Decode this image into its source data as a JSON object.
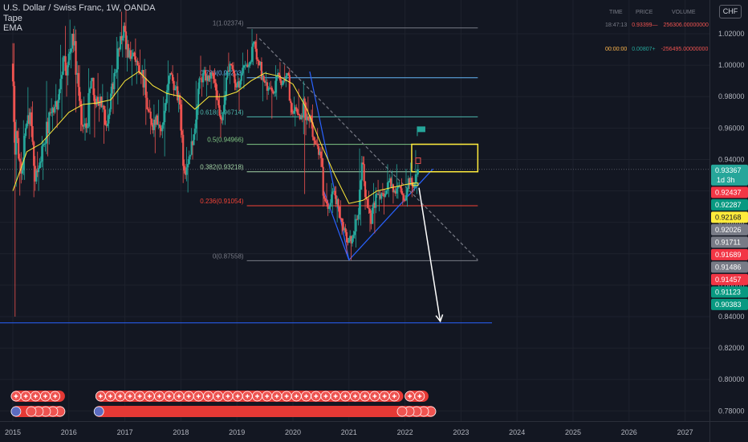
{
  "header": {
    "title": "U.S. Dollar / Swiss Franc, 1W, OANDA",
    "indicators": [
      "Tape",
      "EMA"
    ]
  },
  "currency_button": "CHF",
  "tape": {
    "columns": [
      "TIME",
      "PRICE",
      "VOLUME"
    ],
    "rows": [
      {
        "time": "18:47:13",
        "price": "0.93399",
        "dir": "—",
        "volume": "256306.00000000",
        "price_color": "#ef5350",
        "volume_color": "#ef5350"
      },
      {
        "time": "00:00:00",
        "price": "0.00807",
        "dir": "+",
        "volume": "-256495.00000000",
        "price_color": "#26a69a",
        "volume_color": "#ef5350"
      }
    ]
  },
  "chart_data": {
    "type": "candlestick",
    "x_axis": {
      "labels": [
        "2015",
        "2016",
        "2017",
        "2018",
        "2019",
        "2020",
        "2021",
        "2022",
        "2023",
        "2024",
        "2025",
        "2026",
        "2027"
      ]
    },
    "y_axis": {
      "labels": [
        "1.02000",
        "1.00000",
        "0.98000",
        "0.96000",
        "0.94000",
        "0.92000",
        "0.90000",
        "0.88000",
        "0.86000",
        "0.84000",
        "0.82000",
        "0.80000",
        "0.78000"
      ],
      "range": [
        0.7735,
        1.0415
      ]
    },
    "candles": [
      {
        "t": 2015.0,
        "o": 1.001,
        "h": 1.014,
        "l": 0.84,
        "c": 0.958
      },
      {
        "t": 2015.08,
        "o": 0.958,
        "h": 0.96,
        "l": 0.917,
        "c": 0.931
      },
      {
        "t": 2015.17,
        "o": 0.931,
        "h": 0.965,
        "l": 0.927,
        "c": 0.96
      },
      {
        "t": 2015.25,
        "o": 0.96,
        "h": 0.986,
        "l": 0.953,
        "c": 0.97
      },
      {
        "t": 2015.33,
        "o": 0.97,
        "h": 0.977,
        "l": 0.916,
        "c": 0.926
      },
      {
        "t": 2015.42,
        "o": 0.926,
        "h": 0.945,
        "l": 0.92,
        "c": 0.938
      },
      {
        "t": 2015.5,
        "o": 0.938,
        "h": 0.955,
        "l": 0.927,
        "c": 0.95
      },
      {
        "t": 2015.58,
        "o": 0.95,
        "h": 0.99,
        "l": 0.942,
        "c": 0.97
      },
      {
        "t": 2015.67,
        "o": 0.97,
        "h": 0.979,
        "l": 0.959,
        "c": 0.97
      },
      {
        "t": 2015.75,
        "o": 0.97,
        "h": 0.988,
        "l": 0.96,
        "c": 0.978
      },
      {
        "t": 2015.83,
        "o": 0.978,
        "h": 1.013,
        "l": 0.966,
        "c": 1.005
      },
      {
        "t": 2015.92,
        "o": 1.005,
        "h": 1.025,
        "l": 0.98,
        "c": 1.0
      },
      {
        "t": 2016.0,
        "o": 1.0,
        "h": 1.029,
        "l": 0.998,
        "c": 1.02
      },
      {
        "t": 2016.08,
        "o": 1.02,
        "h": 1.025,
        "l": 0.97,
        "c": 0.995
      },
      {
        "t": 2016.17,
        "o": 0.995,
        "h": 1.0,
        "l": 0.958,
        "c": 0.962
      },
      {
        "t": 2016.25,
        "o": 0.962,
        "h": 0.98,
        "l": 0.952,
        "c": 0.96
      },
      {
        "t": 2016.33,
        "o": 0.96,
        "h": 0.998,
        "l": 0.956,
        "c": 0.99
      },
      {
        "t": 2016.42,
        "o": 0.99,
        "h": 0.992,
        "l": 0.954,
        "c": 0.975
      },
      {
        "t": 2016.5,
        "o": 0.975,
        "h": 0.995,
        "l": 0.964,
        "c": 0.98
      },
      {
        "t": 2016.58,
        "o": 0.98,
        "h": 0.988,
        "l": 0.95,
        "c": 0.962
      },
      {
        "t": 2016.67,
        "o": 0.962,
        "h": 0.983,
        "l": 0.958,
        "c": 0.972
      },
      {
        "t": 2016.75,
        "o": 0.972,
        "h": 1.0,
        "l": 0.969,
        "c": 0.995
      },
      {
        "t": 2016.83,
        "o": 0.995,
        "h": 1.018,
        "l": 0.975,
        "c": 1.01
      },
      {
        "t": 2016.92,
        "o": 1.01,
        "h": 1.034,
        "l": 1.005,
        "c": 1.025
      },
      {
        "t": 2017.0,
        "o": 1.025,
        "h": 1.035,
        "l": 0.996,
        "c": 1.005
      },
      {
        "t": 2017.08,
        "o": 1.005,
        "h": 1.015,
        "l": 0.987,
        "c": 1.008
      },
      {
        "t": 2017.17,
        "o": 1.008,
        "h": 1.017,
        "l": 0.988,
        "c": 1.0
      },
      {
        "t": 2017.25,
        "o": 1.0,
        "h": 1.01,
        "l": 0.988,
        "c": 0.997
      },
      {
        "t": 2017.33,
        "o": 0.997,
        "h": 1.004,
        "l": 0.962,
        "c": 0.972
      },
      {
        "t": 2017.42,
        "o": 0.972,
        "h": 0.978,
        "l": 0.956,
        "c": 0.962
      },
      {
        "t": 2017.5,
        "o": 0.962,
        "h": 0.975,
        "l": 0.944,
        "c": 0.968
      },
      {
        "t": 2017.58,
        "o": 0.968,
        "h": 0.978,
        "l": 0.954,
        "c": 0.958
      },
      {
        "t": 2017.67,
        "o": 0.958,
        "h": 0.98,
        "l": 0.942,
        "c": 0.976
      },
      {
        "t": 2017.75,
        "o": 0.976,
        "h": 1.003,
        "l": 0.97,
        "c": 0.995
      },
      {
        "t": 2017.83,
        "o": 0.995,
        "h": 1.0,
        "l": 0.98,
        "c": 0.985
      },
      {
        "t": 2017.92,
        "o": 0.985,
        "h": 0.995,
        "l": 0.97,
        "c": 0.975
      },
      {
        "t": 2018.0,
        "o": 0.975,
        "h": 0.978,
        "l": 0.925,
        "c": 0.933
      },
      {
        "t": 2018.08,
        "o": 0.933,
        "h": 0.948,
        "l": 0.919,
        "c": 0.942
      },
      {
        "t": 2018.17,
        "o": 0.942,
        "h": 0.96,
        "l": 0.94,
        "c": 0.956
      },
      {
        "t": 2018.25,
        "o": 0.956,
        "h": 0.99,
        "l": 0.952,
        "c": 0.985
      },
      {
        "t": 2018.33,
        "o": 0.985,
        "h": 1.006,
        "l": 0.98,
        "c": 0.995
      },
      {
        "t": 2018.42,
        "o": 0.995,
        "h": 0.999,
        "l": 0.98,
        "c": 0.99
      },
      {
        "t": 2018.5,
        "o": 0.99,
        "h": 1.0,
        "l": 0.985,
        "c": 0.995
      },
      {
        "t": 2018.58,
        "o": 0.995,
        "h": 0.998,
        "l": 0.972,
        "c": 0.978
      },
      {
        "t": 2018.67,
        "o": 0.978,
        "h": 0.982,
        "l": 0.954,
        "c": 0.965
      },
      {
        "t": 2018.75,
        "o": 0.965,
        "h": 0.995,
        "l": 0.962,
        "c": 0.992
      },
      {
        "t": 2018.83,
        "o": 0.992,
        "h": 1.008,
        "l": 0.988,
        "c": 1.0
      },
      {
        "t": 2018.92,
        "o": 1.0,
        "h": 1.002,
        "l": 0.984,
        "c": 0.986
      },
      {
        "t": 2019.0,
        "o": 0.986,
        "h": 0.995,
        "l": 0.971,
        "c": 0.99
      },
      {
        "t": 2019.08,
        "o": 0.99,
        "h": 1.008,
        "l": 0.985,
        "c": 1.0
      },
      {
        "t": 2019.17,
        "o": 1.0,
        "h": 1.01,
        "l": 0.995,
        "c": 1.002
      },
      {
        "t": 2019.25,
        "o": 1.002,
        "h": 1.023,
        "l": 1.0,
        "c": 1.015
      },
      {
        "t": 2019.33,
        "o": 1.015,
        "h": 1.02,
        "l": 0.998,
        "c": 1.0
      },
      {
        "t": 2019.42,
        "o": 1.0,
        "h": 1.005,
        "l": 0.977,
        "c": 0.99
      },
      {
        "t": 2019.5,
        "o": 0.99,
        "h": 0.996,
        "l": 0.978,
        "c": 0.985
      },
      {
        "t": 2019.58,
        "o": 0.985,
        "h": 0.99,
        "l": 0.966,
        "c": 0.982
      },
      {
        "t": 2019.67,
        "o": 0.982,
        "h": 1.0,
        "l": 0.978,
        "c": 0.995
      },
      {
        "t": 2019.75,
        "o": 0.995,
        "h": 1.002,
        "l": 0.985,
        "c": 0.988
      },
      {
        "t": 2019.83,
        "o": 0.988,
        "h": 1.0,
        "l": 0.986,
        "c": 0.995
      },
      {
        "t": 2019.92,
        "o": 0.995,
        "h": 0.998,
        "l": 0.968,
        "c": 0.97
      },
      {
        "t": 2020.0,
        "o": 0.97,
        "h": 0.98,
        "l": 0.961,
        "c": 0.972
      },
      {
        "t": 2020.08,
        "o": 0.972,
        "h": 0.985,
        "l": 0.965,
        "c": 0.968
      },
      {
        "t": 2020.17,
        "o": 0.968,
        "h": 0.99,
        "l": 0.918,
        "c": 0.965
      },
      {
        "t": 2020.25,
        "o": 0.965,
        "h": 0.98,
        "l": 0.96,
        "c": 0.968
      },
      {
        "t": 2020.33,
        "o": 0.968,
        "h": 0.975,
        "l": 0.948,
        "c": 0.95
      },
      {
        "t": 2020.42,
        "o": 0.95,
        "h": 0.96,
        "l": 0.94,
        "c": 0.945
      },
      {
        "t": 2020.5,
        "o": 0.945,
        "h": 0.95,
        "l": 0.91,
        "c": 0.915
      },
      {
        "t": 2020.58,
        "o": 0.915,
        "h": 0.925,
        "l": 0.904,
        "c": 0.91
      },
      {
        "t": 2020.67,
        "o": 0.91,
        "h": 0.925,
        "l": 0.906,
        "c": 0.92
      },
      {
        "t": 2020.75,
        "o": 0.92,
        "h": 0.923,
        "l": 0.9,
        "c": 0.91
      },
      {
        "t": 2020.83,
        "o": 0.91,
        "h": 0.914,
        "l": 0.892,
        "c": 0.895
      },
      {
        "t": 2020.92,
        "o": 0.895,
        "h": 0.899,
        "l": 0.88,
        "c": 0.887
      },
      {
        "t": 2021.0,
        "o": 0.887,
        "h": 0.895,
        "l": 0.876,
        "c": 0.89
      },
      {
        "t": 2021.08,
        "o": 0.89,
        "h": 0.905,
        "l": 0.884,
        "c": 0.902
      },
      {
        "t": 2021.17,
        "o": 0.902,
        "h": 0.947,
        "l": 0.898,
        "c": 0.938
      },
      {
        "t": 2021.25,
        "o": 0.938,
        "h": 0.942,
        "l": 0.908,
        "c": 0.915
      },
      {
        "t": 2021.33,
        "o": 0.915,
        "h": 0.92,
        "l": 0.894,
        "c": 0.899
      },
      {
        "t": 2021.42,
        "o": 0.899,
        "h": 0.925,
        "l": 0.893,
        "c": 0.918
      },
      {
        "t": 2021.5,
        "o": 0.918,
        "h": 0.927,
        "l": 0.907,
        "c": 0.915
      },
      {
        "t": 2021.58,
        "o": 0.915,
        "h": 0.925,
        "l": 0.905,
        "c": 0.918
      },
      {
        "t": 2021.67,
        "o": 0.918,
        "h": 0.937,
        "l": 0.916,
        "c": 0.928
      },
      {
        "t": 2021.75,
        "o": 0.928,
        "h": 0.933,
        "l": 0.912,
        "c": 0.92
      },
      {
        "t": 2021.83,
        "o": 0.92,
        "h": 0.937,
        "l": 0.915,
        "c": 0.923
      },
      {
        "t": 2021.92,
        "o": 0.923,
        "h": 0.928,
        "l": 0.911,
        "c": 0.914
      },
      {
        "t": 2022.0,
        "o": 0.914,
        "h": 0.934,
        "l": 0.91,
        "c": 0.928
      },
      {
        "t": 2022.08,
        "o": 0.928,
        "h": 0.938,
        "l": 0.916,
        "c": 0.922
      },
      {
        "t": 2022.17,
        "o": 0.922,
        "h": 0.946,
        "l": 0.918,
        "c": 0.9337
      }
    ],
    "ema": [
      [
        2015.0,
        0.92
      ],
      [
        2015.25,
        0.945
      ],
      [
        2015.5,
        0.95
      ],
      [
        2015.75,
        0.96
      ],
      [
        2016.0,
        0.97
      ],
      [
        2016.25,
        0.975
      ],
      [
        2016.5,
        0.976
      ],
      [
        2016.75,
        0.978
      ],
      [
        2017.0,
        0.99
      ],
      [
        2017.25,
        0.996
      ],
      [
        2017.5,
        0.987
      ],
      [
        2017.75,
        0.982
      ],
      [
        2018.0,
        0.98
      ],
      [
        2018.25,
        0.972
      ],
      [
        2018.5,
        0.98
      ],
      [
        2018.75,
        0.98
      ],
      [
        2019.0,
        0.983
      ],
      [
        2019.25,
        0.99
      ],
      [
        2019.5,
        0.995
      ],
      [
        2019.75,
        0.993
      ],
      [
        2020.0,
        0.988
      ],
      [
        2020.25,
        0.972
      ],
      [
        2020.5,
        0.95
      ],
      [
        2020.75,
        0.93
      ],
      [
        2021.0,
        0.912
      ],
      [
        2021.25,
        0.914
      ],
      [
        2021.5,
        0.92
      ],
      [
        2021.75,
        0.922
      ],
      [
        2022.0,
        0.924
      ],
      [
        2022.17,
        0.925
      ]
    ],
    "fibonacci": {
      "levels": [
        {
          "label": "1(1.02374)",
          "value": 1.02374,
          "color": "#787b86"
        },
        {
          "label": "0.786(0.99203)",
          "value": 0.99203,
          "color": "#64b5f6"
        },
        {
          "label": "0.618(0.96714)",
          "value": 0.96714,
          "color": "#4db6ac"
        },
        {
          "label": "0.5(0.94966)",
          "value": 0.94966,
          "color": "#81c784"
        },
        {
          "label": "0.382(0.93218)",
          "value": 0.93218,
          "color": "#a5d6a7"
        },
        {
          "label": "0.236(0.91054)",
          "value": 0.91054,
          "color": "#f44336"
        },
        {
          "label": "0(0.87558)",
          "value": 0.87558,
          "color": "#787b86"
        }
      ],
      "t_start": 2019.12,
      "t_end": 2023.3
    },
    "support_line": {
      "value": 0.836,
      "color": "#2962ff"
    },
    "yellow_box": {
      "t1": 2022.12,
      "t2": 2023.3,
      "y_top": 0.9497,
      "y_bottom": 0.9322,
      "color": "#ffeb3b"
    },
    "target_arrow": {
      "from": [
        2022.25,
        0.922
      ],
      "to": [
        2022.63,
        0.837
      ],
      "color": "#ffffff"
    },
    "flag": {
      "t": 2022.22,
      "y": 0.96,
      "color": "#26a69a"
    },
    "trendlines": [
      {
        "from": [
          2020.3,
          0.996
        ],
        "to": [
          2021.0,
          0.876
        ],
        "color": "#2962ff"
      },
      {
        "from": [
          2021.0,
          0.876
        ],
        "to": [
          2022.5,
          0.934
        ],
        "color": "#2962ff"
      },
      {
        "from": [
          2020.55,
          0.92
        ],
        "to": [
          2021.0,
          0.876
        ],
        "color": "#2962ff"
      },
      {
        "from": [
          2019.4,
          1.017
        ],
        "to": [
          2023.3,
          0.876
        ],
        "color": "#787b86",
        "dashed": true
      }
    ],
    "price_labels": [
      {
        "text": "0.93367",
        "sub": "1d 3h",
        "value": 0.93367,
        "bg": "#26a69a",
        "fg": "#ffffff"
      },
      {
        "text": "0.92437",
        "value": 0.92437,
        "bg": "#f23645",
        "fg": "#ffffff"
      },
      {
        "text": "0.92287",
        "value": 0.92287,
        "bg": "#089981",
        "fg": "#ffffff"
      },
      {
        "text": "0.92168",
        "value": 0.92168,
        "bg": "#ffeb3b",
        "fg": "#131722"
      },
      {
        "text": "0.92026",
        "value": 0.92026,
        "bg": "#787b86",
        "fg": "#ffffff"
      },
      {
        "text": "0.91711",
        "value": 0.91711,
        "bg": "#787b86",
        "fg": "#ffffff"
      },
      {
        "text": "0.91689",
        "value": 0.91689,
        "bg": "#f23645",
        "fg": "#ffffff"
      },
      {
        "text": "0.91486",
        "value": 0.91486,
        "bg": "#787b86",
        "fg": "#ffffff"
      },
      {
        "text": "0.91457",
        "value": 0.91457,
        "bg": "#f23645",
        "fg": "#ffffff"
      },
      {
        "text": "0.91123",
        "value": 0.91123,
        "bg": "#089981",
        "fg": "#ffffff"
      },
      {
        "text": "0.90383",
        "value": 0.90383,
        "bg": "#089981",
        "fg": "#ffffff"
      }
    ],
    "current_price": 0.93367,
    "events": {
      "row1_spans": [
        [
          2014.97,
          2015.93
        ],
        [
          2016.48,
          2021.97
        ],
        [
          2022.0,
          2022.42
        ]
      ],
      "row2_spans": [
        [
          2014.97,
          2015.93
        ],
        [
          2016.45,
          2022.55
        ]
      ]
    },
    "colors": {
      "up": "#26a69a",
      "down": "#ef5350",
      "ema": "#ffeb3b",
      "grid": "#1e222d",
      "background": "#131722"
    }
  }
}
